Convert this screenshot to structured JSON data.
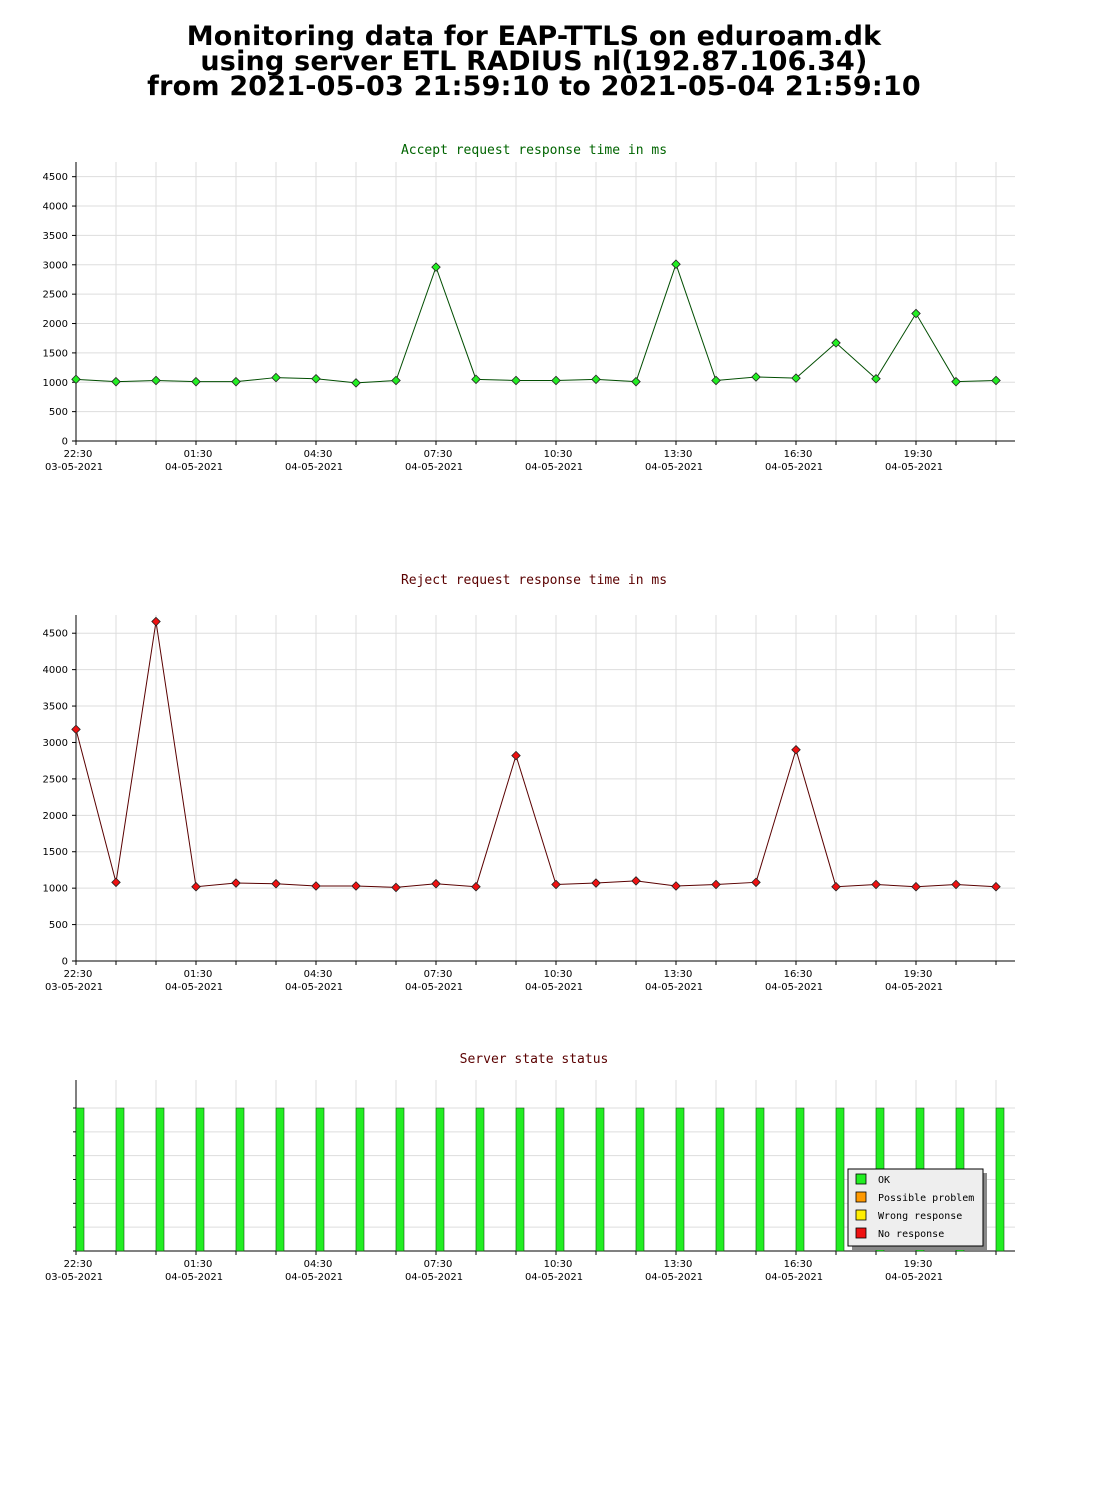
{
  "header": {
    "line1": "Monitoring data for EAP-TTLS on eduroam.dk",
    "line2": "using server ETL RADIUS nl(192.87.106.34)",
    "line3": "from 2021-05-03 21:59:10 to 2021-05-04 21:59:10"
  },
  "x_ticks": [
    {
      "time": "22:30",
      "date": "03-05-2021"
    },
    {
      "time": "01:30",
      "date": "04-05-2021"
    },
    {
      "time": "04:30",
      "date": "04-05-2021"
    },
    {
      "time": "07:30",
      "date": "04-05-2021"
    },
    {
      "time": "10:30",
      "date": "04-05-2021"
    },
    {
      "time": "13:30",
      "date": "04-05-2021"
    },
    {
      "time": "16:30",
      "date": "04-05-2021"
    },
    {
      "time": "19:30",
      "date": "04-05-2021"
    }
  ],
  "chart_data": [
    {
      "type": "line",
      "title": "Accept request response time in ms",
      "title_color": "#006400",
      "line_color": "#004d00",
      "marker_color": "#22ee22",
      "ylim": [
        0,
        4750
      ],
      "yticks": [
        0,
        500,
        1000,
        1500,
        2000,
        2500,
        3000,
        3500,
        4000,
        4500
      ],
      "x_hours": [
        0,
        1,
        2,
        3,
        4,
        5,
        6,
        7,
        8,
        9,
        10,
        11,
        12,
        13,
        14,
        15,
        16,
        17,
        18,
        19,
        20,
        21,
        22,
        23
      ],
      "values": [
        1050,
        1010,
        1030,
        1010,
        1010,
        1080,
        1060,
        990,
        1030,
        2960,
        1050,
        1030,
        1030,
        1050,
        1010,
        3010,
        1030,
        1090,
        1070,
        1670,
        1060,
        2170,
        1010,
        1030
      ]
    },
    {
      "type": "line",
      "title": "Reject request response time in ms",
      "title_color": "#5a0000",
      "line_color": "#5a0000",
      "marker_color": "#ee1111",
      "ylim": [
        0,
        4750
      ],
      "yticks": [
        0,
        500,
        1000,
        1500,
        2000,
        2500,
        3000,
        3500,
        4000,
        4500
      ],
      "x_hours": [
        0,
        1,
        2,
        3,
        4,
        5,
        6,
        7,
        8,
        9,
        10,
        11,
        12,
        13,
        14,
        15,
        16,
        17,
        18,
        19,
        20,
        21,
        22,
        23
      ],
      "values": [
        3180,
        1080,
        4660,
        1020,
        1070,
        1060,
        1030,
        1030,
        1010,
        1060,
        1020,
        2820,
        1050,
        1070,
        1100,
        1030,
        1050,
        1080,
        2900,
        1020,
        1050,
        1020,
        1050,
        1020
      ]
    },
    {
      "type": "bar",
      "title": "Server state status",
      "title_color": "#5a0000",
      "x_hours": [
        0,
        1,
        2,
        3,
        4,
        5,
        6,
        7,
        8,
        9,
        10,
        11,
        12,
        13,
        14,
        15,
        16,
        17,
        18,
        19,
        20,
        21,
        22,
        23
      ],
      "states": [
        "OK",
        "OK",
        "OK",
        "OK",
        "OK",
        "OK",
        "OK",
        "OK",
        "OK",
        "OK",
        "OK",
        "OK",
        "OK",
        "OK",
        "OK",
        "OK",
        "OK",
        "OK",
        "OK",
        "OK",
        "OK",
        "OK",
        "OK",
        "OK"
      ],
      "legend": [
        {
          "label": "OK",
          "color": "#22ee22"
        },
        {
          "label": "Possible problem",
          "color": "#ff9900"
        },
        {
          "label": "Wrong response",
          "color": "#ffee00"
        },
        {
          "label": "No response",
          "color": "#ee1111"
        }
      ],
      "legend_position": "bottom-right"
    }
  ]
}
